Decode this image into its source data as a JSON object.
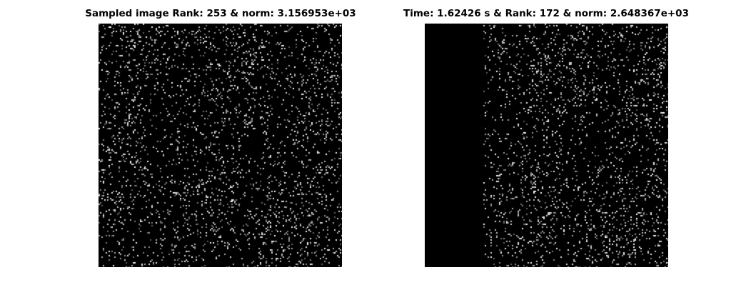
{
  "panels": [
    {
      "title": "Sampled image Rank: 253 & norm: 3.156953e+03",
      "image": "sparse-sampled-noise-image",
      "blank_left_fraction": 0
    },
    {
      "title": "Time: 1.62426 s & Rank: 172 & norm: 2.648367e+03",
      "image": "sparse-reconstructed-noise-image",
      "blank_left_fraction": 0.24
    }
  ],
  "colors": {
    "background": "#ffffff",
    "image_background": "#000000",
    "title": "#000000"
  }
}
